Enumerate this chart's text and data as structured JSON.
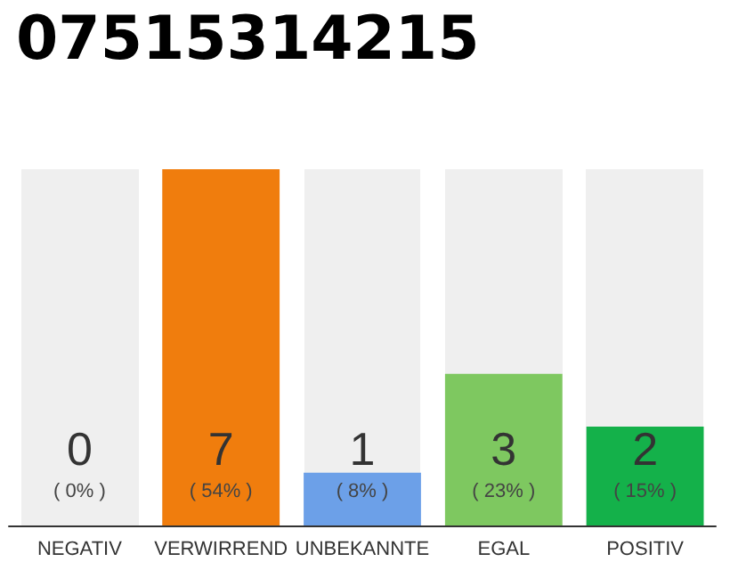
{
  "chart_data": {
    "type": "bar",
    "title": "07515314215",
    "categories": [
      "NEGATIV",
      "VERWIRREND",
      "UNBEKANNTE",
      "EGAL",
      "POSITIV"
    ],
    "values": [
      0,
      54,
      8,
      23,
      15
    ],
    "colors": [
      "#c8c8c8",
      "#f07d0d",
      "#6ca0e8",
      "#7ec860",
      "#14b14a"
    ],
    "value_labels": [
      "0\n( 0% )",
      "7\n( 54% )",
      "1\n( 8% )",
      "3\n( 23% )",
      "2\n( 15% )"
    ]
  }
}
